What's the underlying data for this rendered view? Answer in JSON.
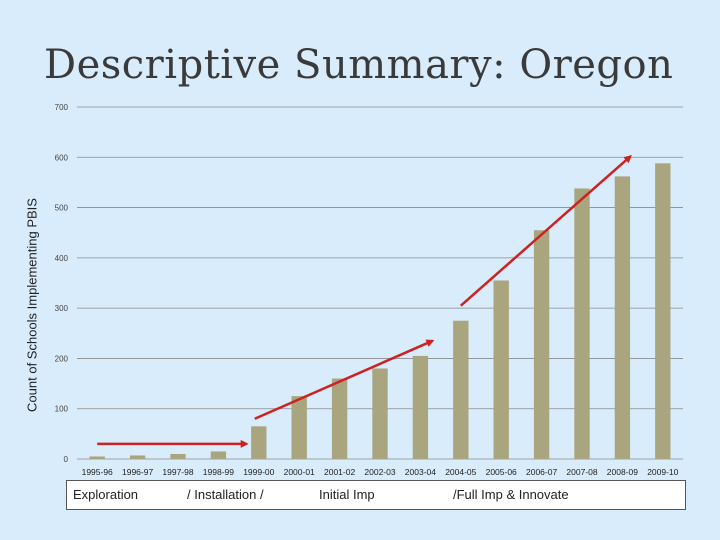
{
  "title": "Descriptive Summary: Oregon",
  "chart_data": {
    "type": "bar",
    "ylabel": "Count of Schools Implementing PBIS",
    "ylim": [
      0,
      700
    ],
    "yticks": [
      0,
      100,
      200,
      300,
      400,
      500,
      600,
      700
    ],
    "categories": [
      "1995-96",
      "1996-97",
      "1997-98",
      "1998-99",
      "1999-00",
      "2000-01",
      "2001-02",
      "2002-03",
      "2003-04",
      "2004-05",
      "2005-06",
      "2006-07",
      "2007-08",
      "2008-09",
      "2009-10"
    ],
    "values": [
      5,
      7,
      10,
      15,
      65,
      125,
      160,
      180,
      205,
      275,
      355,
      455,
      538,
      562,
      588
    ],
    "color": "#a8a57f",
    "annotations": [
      {
        "type": "arrow",
        "color": "#cc2222",
        "from": {
          "category_index": 0.0,
          "y": 30
        },
        "to": {
          "category_index": 3.7,
          "y": 30
        }
      },
      {
        "type": "arrow",
        "color": "#cc2222",
        "from": {
          "category_index": 3.9,
          "y": 80
        },
        "to": {
          "category_index": 8.3,
          "y": 235
        }
      },
      {
        "type": "arrow",
        "color": "#cc2222",
        "from": {
          "category_index": 9.0,
          "y": 305
        },
        "to": {
          "category_index": 13.2,
          "y": 602
        }
      }
    ]
  },
  "phases": [
    {
      "label": "Exploration"
    },
    {
      "label": "/  Installation   /"
    },
    {
      "label": "Initial Imp"
    },
    {
      "label": "/Full Imp & Innovate"
    }
  ]
}
